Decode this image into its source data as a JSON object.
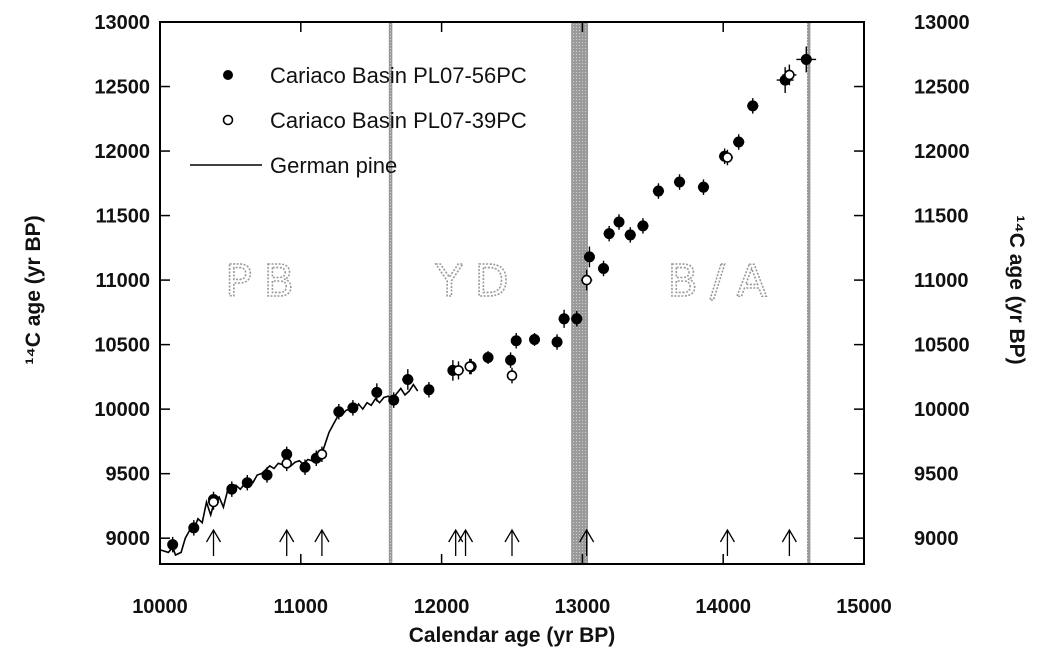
{
  "chart_data": {
    "type": "scatter",
    "title": "",
    "xlabel": "Calendar age (yr BP)",
    "ylabel_left": "¹⁴C age (yr BP)",
    "ylabel_right": "¹⁴C age (yr BP)",
    "xlim": [
      10000,
      15000
    ],
    "ylim": [
      8800,
      13000
    ],
    "xticks": [
      10000,
      11000,
      12000,
      13000,
      14000,
      15000
    ],
    "yticks": [
      9000,
      9500,
      10000,
      10500,
      11000,
      11500,
      12000,
      12500,
      13000
    ],
    "grid": false,
    "legend_position": "top-left",
    "zones": [
      {
        "label": "PB",
        "x": 10750
      },
      {
        "label": "YD",
        "x": 12260
      },
      {
        "label": "B/A",
        "x": 14000
      }
    ],
    "boundaries": [
      {
        "x_start": 11625,
        "x_end": 11650
      },
      {
        "x_start": 12920,
        "x_end": 13040
      },
      {
        "x_start": 14595,
        "x_end": 14620
      }
    ],
    "arrows_x": [
      10380,
      10900,
      11150,
      12100,
      12170,
      12500,
      13030,
      14030,
      14470
    ],
    "series": [
      {
        "name": "Cariaco Basin PL07-56PC",
        "marker": "filled-circle",
        "points": [
          {
            "x": 10090,
            "y": 8950,
            "ex": 30,
            "ey": 60
          },
          {
            "x": 10240,
            "y": 9080,
            "ex": 30,
            "ey": 60
          },
          {
            "x": 10380,
            "y": 9300,
            "ex": 40,
            "ey": 60
          },
          {
            "x": 10510,
            "y": 9380,
            "ex": 30,
            "ey": 60
          },
          {
            "x": 10620,
            "y": 9430,
            "ex": 30,
            "ey": 60
          },
          {
            "x": 10760,
            "y": 9490,
            "ex": 30,
            "ey": 60
          },
          {
            "x": 10900,
            "y": 9650,
            "ex": 30,
            "ey": 60
          },
          {
            "x": 11030,
            "y": 9550,
            "ex": 30,
            "ey": 60
          },
          {
            "x": 11110,
            "y": 9620,
            "ex": 30,
            "ey": 60
          },
          {
            "x": 11270,
            "y": 9980,
            "ex": 30,
            "ey": 60
          },
          {
            "x": 11370,
            "y": 10010,
            "ex": 30,
            "ey": 60
          },
          {
            "x": 11540,
            "y": 10130,
            "ex": 30,
            "ey": 70
          },
          {
            "x": 11660,
            "y": 10070,
            "ex": 30,
            "ey": 60
          },
          {
            "x": 11760,
            "y": 10230,
            "ex": 40,
            "ey": 80
          },
          {
            "x": 11910,
            "y": 10150,
            "ex": 30,
            "ey": 60
          },
          {
            "x": 12080,
            "y": 10300,
            "ex": 30,
            "ey": 80
          },
          {
            "x": 12210,
            "y": 10330,
            "ex": 30,
            "ey": 60
          },
          {
            "x": 12330,
            "y": 10400,
            "ex": 30,
            "ey": 50
          },
          {
            "x": 12490,
            "y": 10380,
            "ex": 30,
            "ey": 60
          },
          {
            "x": 12530,
            "y": 10530,
            "ex": 30,
            "ey": 60
          },
          {
            "x": 12660,
            "y": 10540,
            "ex": 30,
            "ey": 50
          },
          {
            "x": 12820,
            "y": 10520,
            "ex": 30,
            "ey": 60
          },
          {
            "x": 12870,
            "y": 10700,
            "ex": 40,
            "ey": 70
          },
          {
            "x": 12960,
            "y": 10700,
            "ex": 40,
            "ey": 60
          },
          {
            "x": 13050,
            "y": 11180,
            "ex": 30,
            "ey": 80
          },
          {
            "x": 13150,
            "y": 11090,
            "ex": 30,
            "ey": 60
          },
          {
            "x": 13190,
            "y": 11360,
            "ex": 40,
            "ey": 60
          },
          {
            "x": 13260,
            "y": 11450,
            "ex": 30,
            "ey": 60
          },
          {
            "x": 13340,
            "y": 11350,
            "ex": 40,
            "ey": 60
          },
          {
            "x": 13430,
            "y": 11420,
            "ex": 40,
            "ey": 60
          },
          {
            "x": 13540,
            "y": 11690,
            "ex": 40,
            "ey": 60
          },
          {
            "x": 13690,
            "y": 11760,
            "ex": 40,
            "ey": 60
          },
          {
            "x": 13860,
            "y": 11720,
            "ex": 40,
            "ey": 60
          },
          {
            "x": 14010,
            "y": 11960,
            "ex": 40,
            "ey": 60
          },
          {
            "x": 14110,
            "y": 12070,
            "ex": 40,
            "ey": 60
          },
          {
            "x": 14210,
            "y": 12350,
            "ex": 40,
            "ey": 60
          },
          {
            "x": 14440,
            "y": 12550,
            "ex": 60,
            "ey": 100
          },
          {
            "x": 14590,
            "y": 12710,
            "ex": 70,
            "ey": 100
          }
        ]
      },
      {
        "name": "Cariaco Basin PL07-39PC",
        "marker": "open-circle",
        "points": [
          {
            "x": 10380,
            "y": 9280,
            "ex": 40,
            "ey": 60
          },
          {
            "x": 10900,
            "y": 9580,
            "ex": 30,
            "ey": 60
          },
          {
            "x": 11150,
            "y": 9650,
            "ex": 30,
            "ey": 60
          },
          {
            "x": 12120,
            "y": 10300,
            "ex": 40,
            "ey": 70
          },
          {
            "x": 12200,
            "y": 10330,
            "ex": 30,
            "ey": 60
          },
          {
            "x": 12500,
            "y": 10260,
            "ex": 30,
            "ey": 60
          },
          {
            "x": 13030,
            "y": 11000,
            "ex": 40,
            "ey": 80
          },
          {
            "x": 14030,
            "y": 11950,
            "ex": 40,
            "ey": 60
          },
          {
            "x": 14470,
            "y": 12590,
            "ex": 50,
            "ey": 80
          }
        ]
      },
      {
        "name": "German pine",
        "marker": "line",
        "x": [
          9960,
          10000,
          10030,
          10060,
          10090,
          10110,
          10150,
          10180,
          10210,
          10240,
          10270,
          10300,
          10330,
          10360,
          10390,
          10420,
          10450,
          10480,
          10510,
          10540,
          10570,
          10600,
          10630,
          10660,
          10690,
          10720,
          10750,
          10780,
          10810,
          10840,
          10870,
          10900,
          10930,
          10960,
          10990,
          11020,
          11050,
          11080,
          11110,
          11140,
          11170,
          11200,
          11230,
          11260,
          11290,
          11320,
          11350,
          11380,
          11410,
          11440,
          11470,
          11500,
          11530,
          11560,
          11590,
          11620,
          11650,
          11680,
          11710,
          11740,
          11770,
          11800,
          11830
        ],
        "y": [
          8940,
          8910,
          8900,
          8890,
          8930,
          8870,
          8890,
          9000,
          9060,
          9070,
          9150,
          9120,
          9280,
          9180,
          9300,
          9320,
          9240,
          9370,
          9340,
          9410,
          9380,
          9420,
          9440,
          9430,
          9490,
          9500,
          9530,
          9560,
          9540,
          9580,
          9570,
          9600,
          9560,
          9590,
          9600,
          9570,
          9610,
          9600,
          9650,
          9630,
          9720,
          9820,
          9880,
          9940,
          9950,
          9990,
          10000,
          9980,
          10040,
          10000,
          10050,
          10030,
          10080,
          10050,
          10090,
          10100,
          10080,
          10120,
          10160,
          10110,
          10140,
          10190,
          10140
        ]
      }
    ]
  }
}
